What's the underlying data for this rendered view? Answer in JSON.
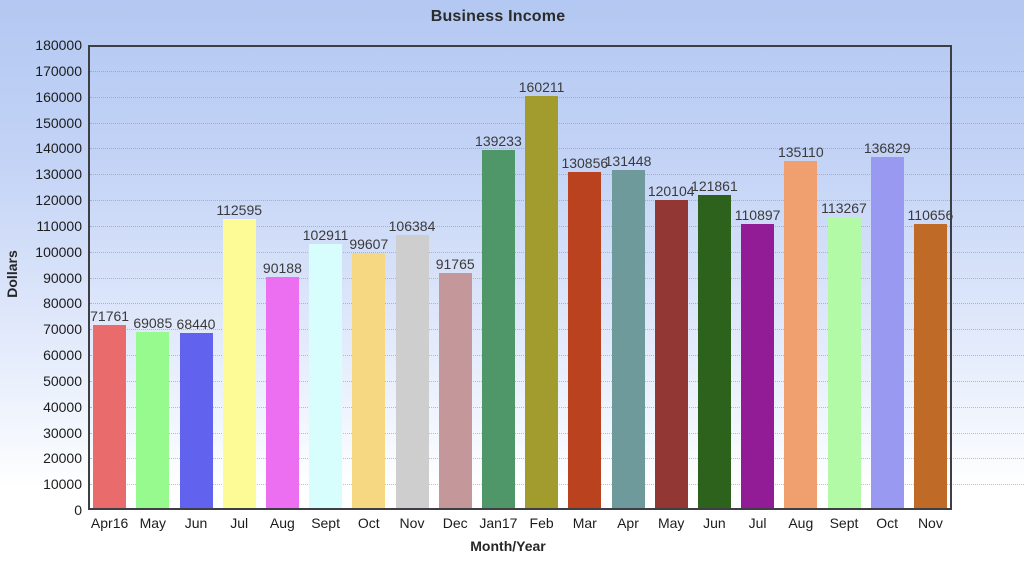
{
  "chart_data": {
    "type": "bar",
    "title": "Business Income",
    "xlabel": "Month/Year",
    "ylabel": "Dollars",
    "ylim": [
      0,
      180000
    ],
    "ytick_step": 10000,
    "grid": "horizontal-dotted",
    "legend": "none",
    "categories": [
      "Apr16",
      "May",
      "Jun",
      "Jul",
      "Aug",
      "Sept",
      "Oct",
      "Nov",
      "Dec",
      "Jan17",
      "Feb",
      "Mar",
      "Apr",
      "May",
      "Jun",
      "Jul",
      "Aug",
      "Sept",
      "Oct",
      "Nov"
    ],
    "values": [
      71761,
      69085,
      68440,
      112595,
      90188,
      102911,
      99607,
      106384,
      91765,
      139233,
      160211,
      130856,
      131448,
      120104,
      121861,
      110897,
      135110,
      113267,
      136829,
      110656
    ],
    "bar_colors": [
      "#E96B6B",
      "#97FA8E",
      "#6163EE",
      "#FDFB96",
      "#EB6FF0",
      "#D8FDFD",
      "#F5D881",
      "#CECECE",
      "#C4989B",
      "#4F9768",
      "#A29B2D",
      "#BB421E",
      "#6F9A9C",
      "#923734",
      "#2D621C",
      "#911C96",
      "#F0A06E",
      "#B2FAA5",
      "#9A99F2",
      "#C06A28"
    ],
    "background": {
      "top": "#B3C8F2",
      "bottom": "#FFFFFF"
    },
    "frame_color": "#3D3F44",
    "text_color": "#1C1C1C"
  }
}
